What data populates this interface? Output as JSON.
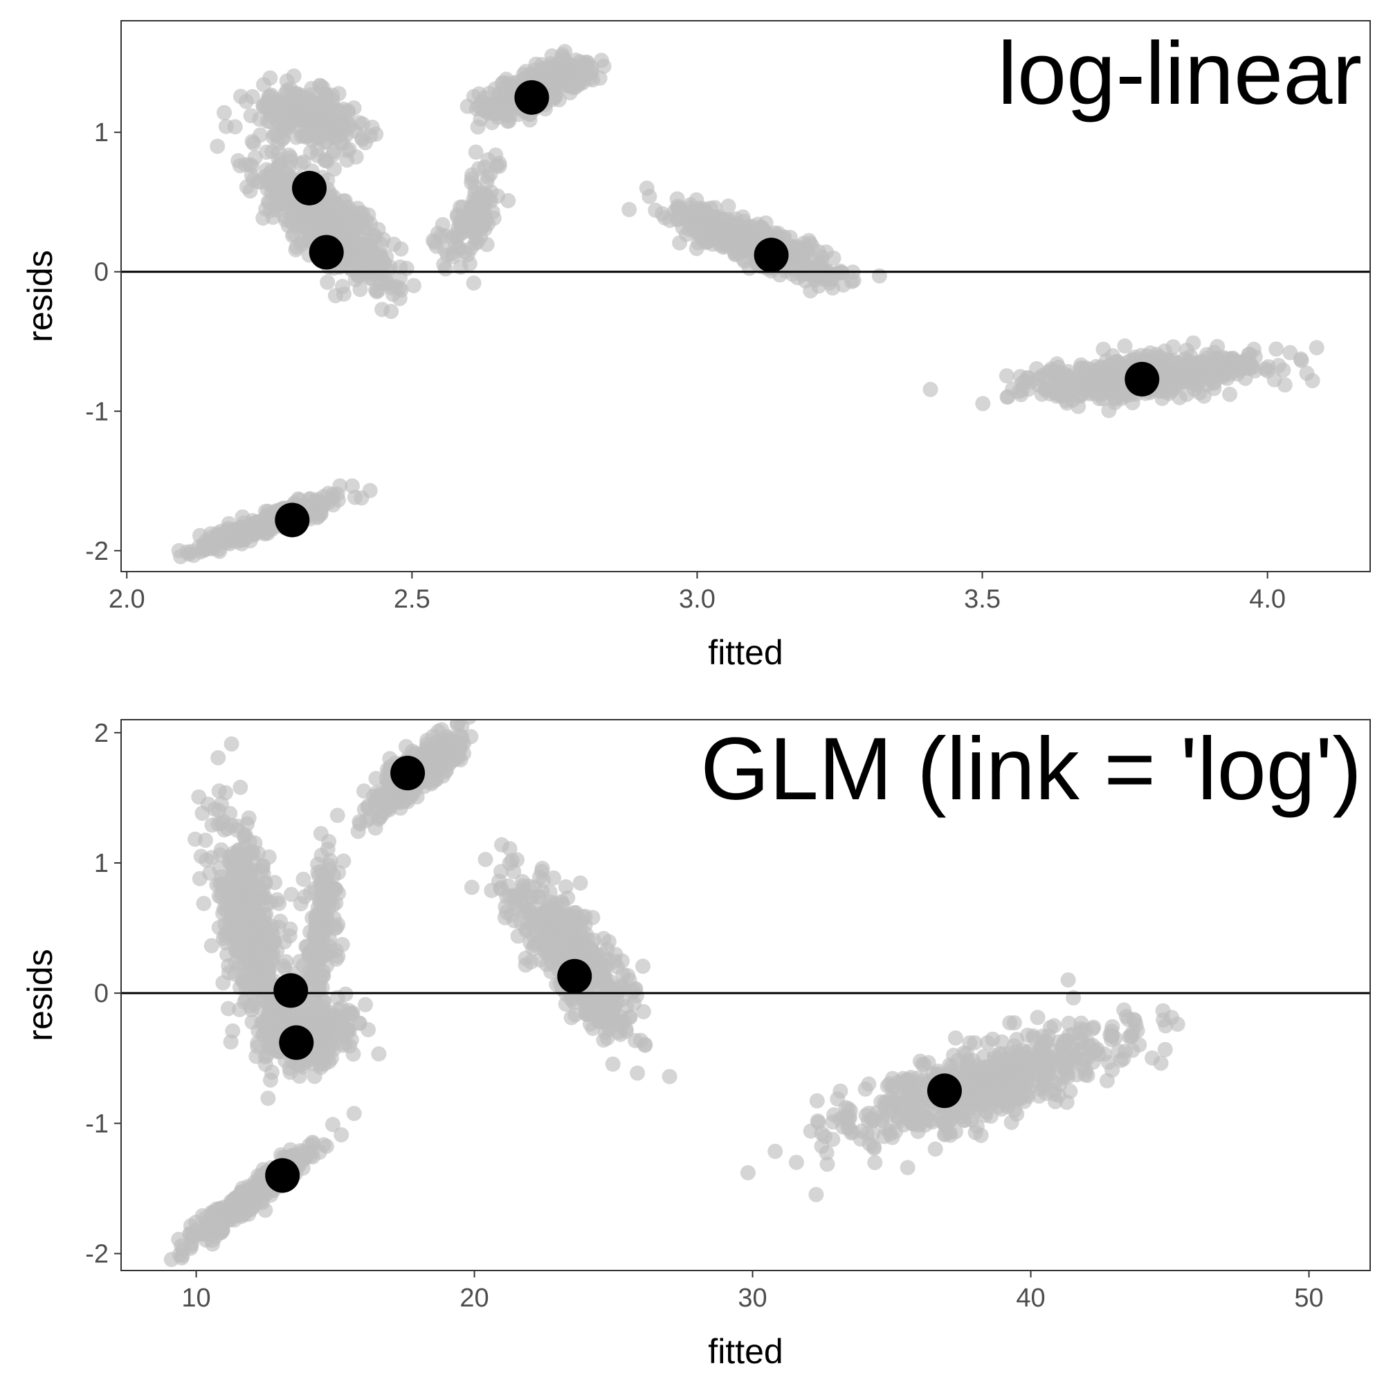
{
  "chart_data": [
    {
      "type": "scatter",
      "title": "log-linear",
      "xlabel": "fitted",
      "ylabel": "resids",
      "xlim": [
        1.99,
        4.18
      ],
      "ylim": [
        -2.15,
        1.8
      ],
      "xticks": [
        2.0,
        2.5,
        3.0,
        3.5,
        4.0
      ],
      "xtick_labels": [
        "2.0",
        "2.5",
        "3.0",
        "3.5",
        "4.0"
      ],
      "yticks": [
        -2,
        -1,
        0,
        1
      ],
      "ytick_labels": [
        "-2",
        "-1",
        "0",
        "1"
      ],
      "reference_line_y": 0,
      "grid": false,
      "point_colors": {
        "cloud": "#bebebe",
        "mean": "#000000",
        "line": "#000000"
      },
      "clusters": [
        {
          "center": [
            2.32,
            1.1
          ],
          "spread": [
            0.05,
            0.1
          ],
          "slope": -1.1,
          "n": 260
        },
        {
          "center": [
            2.35,
            0.35
          ],
          "spread": [
            0.06,
            0.14
          ],
          "slope": -3.2,
          "n": 520
        },
        {
          "center": [
            2.72,
            1.32
          ],
          "spread": [
            0.045,
            0.07
          ],
          "slope": 1.6,
          "n": 380
        },
        {
          "center": [
            2.6,
            0.4
          ],
          "spread": [
            0.03,
            0.16
          ],
          "slope": 4.0,
          "n": 110
        },
        {
          "center": [
            3.1,
            0.2
          ],
          "spread": [
            0.07,
            0.07
          ],
          "slope": -1.5,
          "n": 520
        },
        {
          "center": [
            3.78,
            -0.75
          ],
          "spread": [
            0.1,
            0.07
          ],
          "slope": 0.35,
          "n": 560
        },
        {
          "center": [
            2.25,
            -1.8
          ],
          "spread": [
            0.06,
            0.04
          ],
          "slope": 1.4,
          "n": 320
        }
      ],
      "mean_points": [
        {
          "x": 2.32,
          "y": 0.6
        },
        {
          "x": 2.35,
          "y": 0.14
        },
        {
          "x": 2.71,
          "y": 1.25
        },
        {
          "x": 3.13,
          "y": 0.12
        },
        {
          "x": 3.78,
          "y": -0.77
        },
        {
          "x": 2.29,
          "y": -1.78
        }
      ]
    },
    {
      "type": "scatter",
      "title": "GLM (link = 'log')",
      "xlabel": "fitted",
      "ylabel": "resids",
      "xlim": [
        7.3,
        52.2
      ],
      "ylim": [
        -2.13,
        2.1
      ],
      "xticks": [
        10,
        20,
        30,
        40,
        50
      ],
      "xtick_labels": [
        "10",
        "20",
        "30",
        "40",
        "50"
      ],
      "yticks": [
        -2,
        -1,
        0,
        1,
        2
      ],
      "ytick_labels": [
        "-2",
        "-1",
        "0",
        "1",
        "2"
      ],
      "reference_line_y": 0,
      "grid": false,
      "point_colors": {
        "cloud": "#bebebe",
        "mean": "#000000",
        "line": "#000000"
      },
      "clusters": [
        {
          "center": [
            12.0,
            0.5
          ],
          "spread": [
            0.7,
            0.35
          ],
          "slope": -0.42,
          "n": 420
        },
        {
          "center": [
            14.0,
            -0.3
          ],
          "spread": [
            0.8,
            0.12
          ],
          "slope": 0.0,
          "n": 380
        },
        {
          "center": [
            14.5,
            0.5
          ],
          "spread": [
            0.3,
            0.3
          ],
          "slope": 0.5,
          "n": 140
        },
        {
          "center": [
            18.0,
            1.7
          ],
          "spread": [
            0.8,
            0.09
          ],
          "slope": 0.15,
          "n": 380
        },
        {
          "center": [
            23.5,
            0.3
          ],
          "spread": [
            1.2,
            0.18
          ],
          "slope": -0.22,
          "n": 420
        },
        {
          "center": [
            38.0,
            -0.7
          ],
          "spread": [
            2.6,
            0.14
          ],
          "slope": 0.065,
          "n": 620
        },
        {
          "center": [
            12.0,
            -1.55
          ],
          "spread": [
            1.1,
            0.06
          ],
          "slope": 0.16,
          "n": 340
        }
      ],
      "mean_points": [
        {
          "x": 13.4,
          "y": 0.02
        },
        {
          "x": 13.6,
          "y": -0.38
        },
        {
          "x": 17.6,
          "y": 1.69
        },
        {
          "x": 23.6,
          "y": 0.13
        },
        {
          "x": 36.9,
          "y": -0.75
        },
        {
          "x": 13.1,
          "y": -1.4
        }
      ]
    }
  ]
}
